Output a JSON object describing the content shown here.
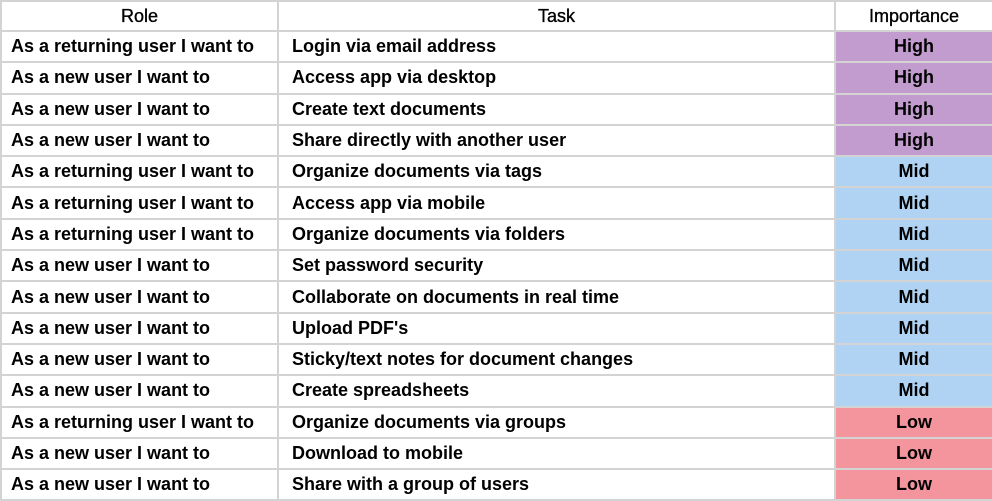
{
  "table": {
    "headers": {
      "role": "Role",
      "task": "Task",
      "importance": "Importance"
    },
    "importance_colors": {
      "High": "#c39ccf",
      "Mid": "#b0d3f3",
      "Low": "#f4959d"
    },
    "rows": [
      {
        "role": "As a returning user I want to",
        "task": "Login via email address",
        "importance": "High"
      },
      {
        "role": "As a new user I want to",
        "task": "Access app via desktop",
        "importance": "High"
      },
      {
        "role": "As a new user I want to",
        "task": "Create text documents",
        "importance": "High"
      },
      {
        "role": "As a new user I want to",
        "task": "Share directly with another user",
        "importance": "High"
      },
      {
        "role": "As a returning user I want to",
        "task": "Organize documents via tags",
        "importance": "Mid"
      },
      {
        "role": "As a returning user I want to",
        "task": "Access app via mobile",
        "importance": "Mid"
      },
      {
        "role": "As a returning user I want to",
        "task": "Organize documents via folders",
        "importance": "Mid"
      },
      {
        "role": "As a new user I want to",
        "task": "Set password security",
        "importance": "Mid"
      },
      {
        "role": "As a new user I want to",
        "task": "Collaborate on documents in real time",
        "importance": "Mid"
      },
      {
        "role": "As a new user I want to",
        "task": "Upload PDF's",
        "importance": "Mid"
      },
      {
        "role": "As a new user I want to",
        "task": "Sticky/text notes for document changes",
        "importance": "Mid"
      },
      {
        "role": "As a new user I want to",
        "task": "Create spreadsheets",
        "importance": "Mid"
      },
      {
        "role": "As a returning user I want to",
        "task": "Organize documents via groups",
        "importance": "Low"
      },
      {
        "role": "As a new user I want to",
        "task": "Download to mobile",
        "importance": "Low"
      },
      {
        "role": "As a new user I want to",
        "task": "Share with a group of users",
        "importance": "Low"
      }
    ]
  }
}
